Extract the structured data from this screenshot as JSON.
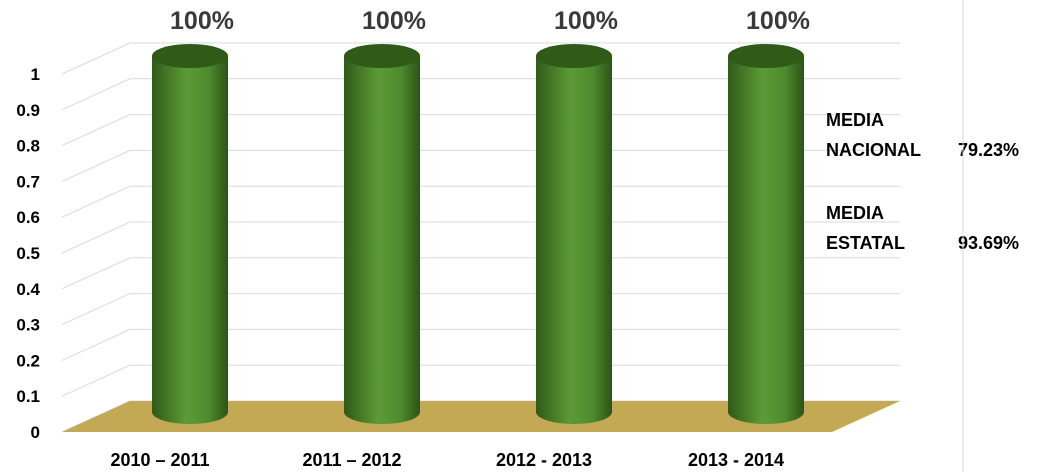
{
  "chart_data": {
    "type": "bar",
    "categories": [
      "2010 – 2011",
      "2011 – 2012",
      "2012 - 2013",
      "2013 - 2014"
    ],
    "values": [
      1,
      1,
      1,
      1
    ],
    "data_labels": [
      "100%",
      "100%",
      "100%",
      "100%"
    ],
    "y_ticks": [
      "0",
      "0.1",
      "0.2",
      "0.3",
      "0.4",
      "0.5",
      "0.6",
      "0.7",
      "0.8",
      "0.9",
      "1"
    ],
    "ylim": [
      0,
      1
    ],
    "grid": true,
    "style": "3d-cylinder",
    "colors": {
      "bar": "#4f8a2e",
      "bar_dark": "#2f5a18",
      "bar_light": "#6fae45",
      "floor": "#c4a955",
      "grid": "#d9d9d9"
    },
    "annotations": [
      {
        "lines": [
          "MEDIA",
          "NACIONAL"
        ],
        "value": "79.23%"
      },
      {
        "lines": [
          "MEDIA",
          "ESTATAL"
        ],
        "value": "93.69%"
      }
    ]
  }
}
